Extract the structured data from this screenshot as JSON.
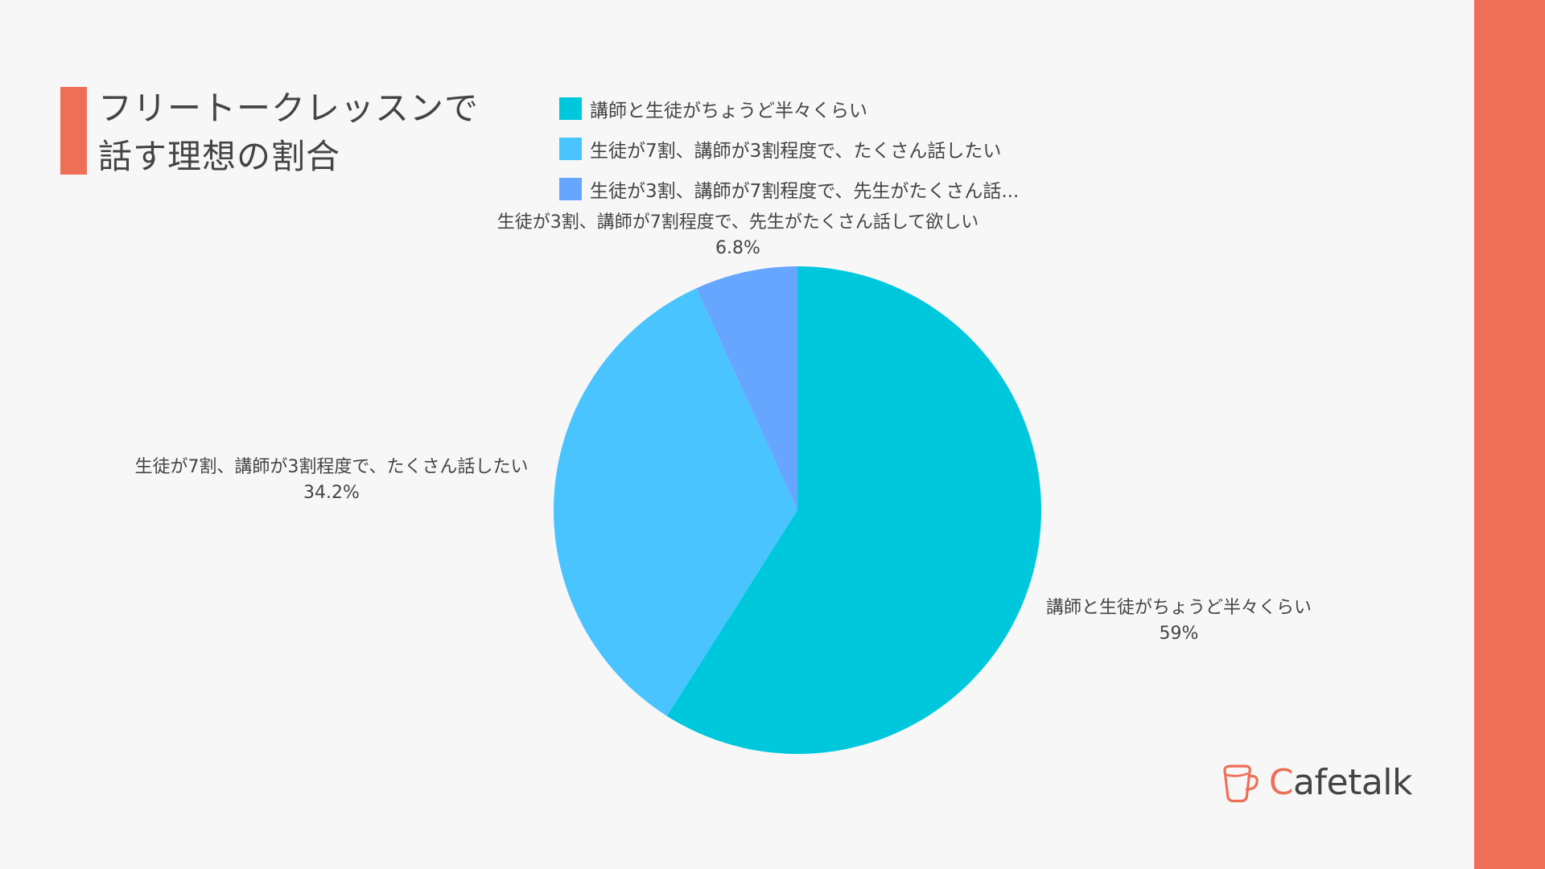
{
  "colors": {
    "accent": "#ee6f57",
    "background": "#f7f7f7",
    "text": "#444444"
  },
  "title_lines": [
    "フリートークレッスンで",
    "話す理想の割合"
  ],
  "legend": [
    {
      "label": "講師と生徒がちょうど半々くらい",
      "color": "#00c8dc"
    },
    {
      "label": "生徒が7割、講師が3割程度で、たくさん話したい",
      "color": "#4ac4ff"
    },
    {
      "label": "生徒が3割、講師が7割程度で、先生がたくさん話...",
      "color": "#66a6ff"
    }
  ],
  "chart_data": {
    "type": "pie",
    "title": "フリートークレッスンで話す理想の割合",
    "start_angle_deg": 0,
    "direction": "clockwise",
    "legend_position": "top",
    "slices": [
      {
        "label": "講師と生徒がちょうど半々くらい",
        "value": 59,
        "value_label": "59%",
        "color": "#00c8dc"
      },
      {
        "label": "生徒が7割、講師が3割程度で、たくさん話したい",
        "value": 34.2,
        "value_label": "34.2%",
        "color": "#4ac4ff"
      },
      {
        "label": "生徒が3割、講師が7割程度で、先生がたくさん話して欲しい",
        "value": 6.8,
        "value_label": "6.8%",
        "color": "#66a6ff"
      }
    ]
  },
  "logo": {
    "first_letter": "C",
    "rest": "afetalk",
    "icon": "coffee-cup-icon"
  }
}
